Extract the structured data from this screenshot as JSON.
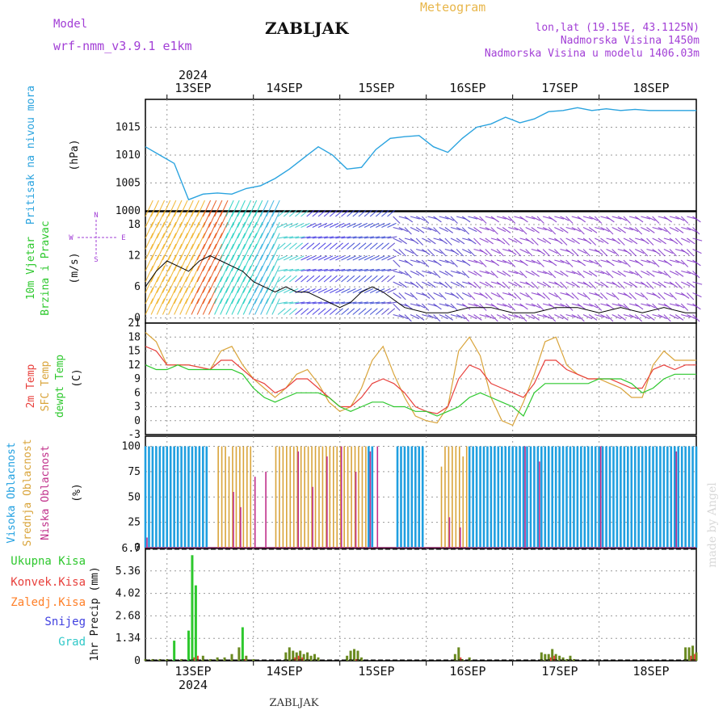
{
  "header": {
    "model_label": "Model",
    "model_name": "wrf-nmm_v3.9.1 e1km",
    "station": "ZABLJAK",
    "product": "Meteogram",
    "lonlat": "lon,lat (19.15E, 43.1125N)",
    "elevation": "Nadmorska Visina 1450m",
    "model_elevation": "Nadmorska Visina u modelu 1406.03m",
    "footer_station": "ZABLJAK",
    "watermark": "made by Angel"
  },
  "time_axis": {
    "year": "2024",
    "day_labels": [
      "13SEP",
      "14SEP",
      "15SEP",
      "16SEP",
      "17SEP",
      "18SEP"
    ],
    "start_hour_offset": -6,
    "end_hour": 147
  },
  "colors": {
    "pressure": "#2aa3df",
    "temp2m": "#e8403c",
    "sfc": "#d9a43a",
    "dewpt": "#2ec82e",
    "high_cloud": "#1f9fe0",
    "mid_cloud": "#d9a43a",
    "low_cloud": "#c0308a",
    "precip_total": "#2ec82e",
    "precip_conv": "#e8403c",
    "precip_frz": "#ff7f27",
    "snow": "#4040e0",
    "hail": "#30c8c8",
    "label_purple": "#a23fd6",
    "label_gold": "#e8b64a"
  },
  "panels": {
    "pressure": {
      "labels": [
        "Pritisak na nivou mora"
      ],
      "unit": "(hPa)",
      "ticks": [
        "1000",
        "1005",
        "1010",
        "1015"
      ]
    },
    "wind": {
      "labels": [
        "10m Vjetar",
        "Brzina i Pravac"
      ],
      "unit": "(m/s)",
      "ticks": [
        "0",
        "6",
        "12",
        "18"
      ],
      "compass": [
        "N",
        "W",
        "E",
        "S"
      ]
    },
    "temp": {
      "labels": [
        "2m Temp",
        "SFC Temp",
        "dewpt Temp"
      ],
      "unit": "(C)",
      "ticks": [
        "-3",
        "0",
        "3",
        "6",
        "9",
        "12",
        "15",
        "18",
        "21"
      ]
    },
    "cloud": {
      "labels": [
        "Visoka Oblacnost",
        "Srednja Oblacnost",
        "Niska Oblacnost"
      ],
      "unit": "(%)",
      "ticks": [
        "0",
        "25",
        "50",
        "75",
        "100"
      ]
    },
    "precip": {
      "labels": [
        "Ukupna Kisa",
        "Konvek.Kisa",
        "Zaledj.Kisa",
        "Snijeg",
        "Grad"
      ],
      "unit": "1hr Precip (mm)",
      "ticks": [
        "0",
        "1.34",
        "2.68",
        "4.02",
        "5.36",
        "6.7"
      ]
    }
  },
  "chart_data": [
    {
      "type": "line",
      "title": "",
      "ylabel": "Pritisak na nivou mora (hPa)",
      "ylim": [
        1000,
        1020
      ],
      "series": [
        {
          "name": "Pritisak na nivou mora",
          "x": [
            -6,
            -2,
            2,
            6,
            10,
            14,
            18,
            22,
            26,
            30,
            34,
            38,
            42,
            46,
            50,
            54,
            58,
            62,
            66,
            70,
            74,
            78,
            82,
            86,
            90,
            94,
            98,
            102,
            106,
            110,
            114,
            118,
            122,
            126,
            130,
            134,
            138,
            142,
            147
          ],
          "y": [
            1011.5,
            1010.0,
            1008.5,
            1002.0,
            1003.0,
            1003.2,
            1003.0,
            1004.0,
            1004.5,
            1005.8,
            1007.5,
            1009.5,
            1011.5,
            1010.0,
            1007.5,
            1007.8,
            1011.0,
            1013.0,
            1013.3,
            1013.5,
            1011.5,
            1010.5,
            1013.0,
            1015.0,
            1015.6,
            1016.8,
            1015.8,
            1016.5,
            1017.8,
            1018.0,
            1018.5,
            1018.0,
            1018.3,
            1018.0,
            1018.2,
            1018.0,
            1018.0,
            1018.0,
            1018.0
          ]
        }
      ]
    },
    {
      "type": "line",
      "title": "",
      "ylabel": "10m Vjetar Brzina i Pravac (m/s)",
      "ylim": [
        0,
        20
      ],
      "series": [
        {
          "name": "10m Vjetar",
          "x": [
            -6,
            -3,
            0,
            3,
            6,
            9,
            12,
            15,
            18,
            21,
            24,
            27,
            30,
            33,
            36,
            39,
            42,
            45,
            48,
            51,
            54,
            57,
            60,
            66,
            72,
            78,
            84,
            90,
            96,
            102,
            108,
            114,
            120,
            126,
            132,
            138,
            144,
            147
          ],
          "y": [
            6,
            9,
            11,
            10,
            9,
            11,
            12,
            11,
            10,
            9,
            7,
            6,
            5,
            6,
            5,
            5,
            4,
            3,
            2,
            3,
            5,
            6,
            5,
            2,
            1,
            1,
            2,
            2,
            1,
            1,
            2,
            2,
            1,
            2,
            1,
            2,
            1,
            1
          ]
        }
      ]
    },
    {
      "type": "line",
      "title": "",
      "ylabel": "(C)",
      "ylim": [
        -3,
        21
      ],
      "series": [
        {
          "name": "2m Temp",
          "x": [
            -6,
            -3,
            0,
            3,
            6,
            9,
            12,
            15,
            18,
            21,
            24,
            27,
            30,
            33,
            36,
            39,
            42,
            45,
            48,
            51,
            54,
            57,
            60,
            63,
            66,
            69,
            72,
            75,
            78,
            81,
            84,
            87,
            90,
            93,
            96,
            99,
            102,
            105,
            108,
            111,
            114,
            117,
            120,
            123,
            126,
            129,
            132,
            135,
            138,
            141,
            144,
            147
          ],
          "y": [
            16,
            15,
            12,
            12,
            12,
            11.5,
            11,
            13,
            13,
            11,
            9,
            8,
            6,
            7,
            9,
            9,
            7,
            5,
            3,
            3,
            5,
            8,
            9,
            8,
            6,
            3,
            2,
            1.5,
            3,
            9,
            12,
            11,
            8,
            7,
            6,
            5,
            8,
            13,
            13,
            11,
            10,
            9,
            9,
            9,
            8,
            7,
            7,
            11,
            12,
            11,
            12,
            12
          ]
        },
        {
          "name": "SFC Temp",
          "x": [
            -6,
            -3,
            0,
            3,
            6,
            9,
            12,
            15,
            18,
            21,
            24,
            27,
            30,
            33,
            36,
            39,
            42,
            45,
            48,
            51,
            54,
            57,
            60,
            63,
            66,
            69,
            72,
            75,
            78,
            81,
            84,
            87,
            90,
            93,
            96,
            99,
            102,
            105,
            108,
            111,
            114,
            117,
            120,
            123,
            126,
            129,
            132,
            135,
            138,
            141,
            144,
            147
          ],
          "y": [
            19,
            17,
            12,
            12,
            12,
            11.5,
            11,
            15,
            16,
            12,
            9,
            7,
            5,
            7,
            10,
            11,
            8,
            4,
            2,
            3,
            7,
            13,
            16,
            10,
            5,
            1,
            0,
            -0.5,
            3,
            15,
            18,
            14,
            5,
            0,
            -1,
            4,
            10,
            17,
            18,
            12,
            10,
            9,
            9,
            8,
            7,
            5,
            5,
            12,
            15,
            13,
            13,
            13
          ]
        },
        {
          "name": "dewpt Temp",
          "x": [
            -6,
            -3,
            0,
            3,
            6,
            9,
            12,
            15,
            18,
            21,
            24,
            27,
            30,
            33,
            36,
            39,
            42,
            45,
            48,
            51,
            54,
            57,
            60,
            63,
            66,
            69,
            72,
            75,
            78,
            81,
            84,
            87,
            90,
            93,
            96,
            99,
            102,
            105,
            108,
            111,
            114,
            117,
            120,
            123,
            126,
            129,
            132,
            135,
            138,
            141,
            144,
            147
          ],
          "y": [
            12,
            11,
            11,
            12,
            11,
            11,
            11,
            11,
            11,
            10,
            7,
            5,
            4,
            5,
            6,
            6,
            6,
            5,
            3,
            2,
            3,
            4,
            4,
            3,
            3,
            2,
            2,
            1,
            2,
            3,
            5,
            6,
            5,
            4,
            3,
            1,
            6,
            8,
            8,
            8,
            8,
            8,
            9,
            9,
            9,
            8,
            6,
            7,
            9,
            10,
            10,
            10
          ]
        }
      ]
    },
    {
      "type": "bar",
      "title": "",
      "ylabel": "(%)",
      "ylim": [
        0,
        100
      ],
      "series": [
        {
          "name": "Visoka Oblacnost",
          "x": [
            -6,
            -5,
            -4,
            -3,
            -2,
            -1,
            0,
            1,
            2,
            3,
            4,
            5,
            6,
            7,
            8,
            9,
            10,
            11,
            56,
            57,
            64,
            65,
            66,
            67,
            68,
            69,
            70,
            71,
            84,
            85,
            86,
            87,
            88,
            89,
            90,
            91,
            92,
            93,
            94,
            95,
            96,
            97,
            98,
            99,
            100,
            101,
            102,
            103,
            104,
            105,
            106,
            107,
            108,
            109,
            110,
            111,
            112,
            113,
            114,
            115,
            116,
            117,
            118,
            119,
            120,
            121,
            122,
            123,
            124,
            125,
            126,
            127,
            128,
            129,
            130,
            131,
            132,
            133,
            134,
            135,
            136,
            137,
            138,
            139,
            140,
            141,
            142,
            143,
            144,
            145,
            146,
            147
          ],
          "y": [
            100,
            100,
            100,
            100,
            100,
            100,
            100,
            100,
            100,
            100,
            100,
            100,
            100,
            100,
            100,
            100,
            100,
            100,
            100,
            100,
            100,
            100,
            100,
            100,
            100,
            100,
            100,
            100,
            100,
            100,
            100,
            100,
            100,
            100,
            100,
            100,
            100,
            100,
            100,
            100,
            100,
            100,
            100,
            100,
            100,
            100,
            100,
            100,
            100,
            100,
            100,
            100,
            100,
            100,
            100,
            100,
            100,
            100,
            100,
            100,
            100,
            100,
            100,
            100,
            100,
            100,
            100,
            100,
            100,
            100,
            100,
            100,
            100,
            100,
            100,
            100,
            100,
            100,
            100,
            100,
            100,
            100,
            100,
            100,
            100,
            100,
            100,
            100,
            100,
            100,
            100,
            100
          ]
        },
        {
          "name": "Srednja Oblacnost",
          "x": [
            14,
            15,
            16,
            17,
            18,
            19,
            20,
            21,
            22,
            23,
            30,
            31,
            32,
            33,
            34,
            35,
            36,
            37,
            38,
            39,
            40,
            41,
            42,
            43,
            44,
            45,
            46,
            47,
            48,
            49,
            50,
            51,
            52,
            53,
            54,
            55,
            76,
            77,
            78,
            79,
            80,
            81,
            82,
            83
          ],
          "y": [
            100,
            100,
            100,
            90,
            100,
            100,
            100,
            100,
            100,
            100,
            100,
            100,
            100,
            100,
            100,
            100,
            100,
            100,
            100,
            100,
            100,
            100,
            100,
            100,
            100,
            100,
            100,
            100,
            100,
            100,
            100,
            100,
            100,
            100,
            100,
            100,
            80,
            100,
            100,
            100,
            100,
            100,
            90,
            100
          ]
        },
        {
          "name": "Niska Oblacnost",
          "x": [
            -6,
            18,
            20,
            24,
            27,
            36,
            40,
            44,
            48,
            52,
            56,
            58,
            78,
            81,
            99,
            103,
            120,
            141
          ],
          "y": [
            10,
            55,
            40,
            70,
            75,
            95,
            60,
            90,
            100,
            75,
            95,
            100,
            30,
            20,
            100,
            85,
            100,
            95
          ]
        }
      ]
    },
    {
      "type": "bar",
      "title": "",
      "ylabel": "1hr Precip (mm)",
      "ylim": [
        0,
        6.7
      ],
      "series": [
        {
          "name": "Ukupna Kisa",
          "x": [
            -6,
            -4,
            -2,
            0,
            2,
            4,
            6,
            7,
            8,
            10,
            12,
            14,
            16,
            18,
            20,
            21,
            22,
            24,
            33,
            34,
            35,
            36,
            37,
            38,
            39,
            40,
            41,
            42,
            50,
            51,
            52,
            53,
            54,
            80,
            81,
            82,
            84,
            104,
            105,
            106,
            107,
            108,
            109,
            110,
            111,
            112,
            113,
            144,
            145,
            146,
            147
          ],
          "y": [
            0.1,
            0.1,
            0.1,
            0.1,
            1.2,
            0.1,
            1.8,
            6.3,
            4.5,
            0.3,
            0.1,
            0.2,
            0.2,
            0.4,
            0.8,
            2.0,
            0.3,
            0.1,
            0.5,
            0.8,
            0.6,
            0.5,
            0.6,
            0.4,
            0.5,
            0.3,
            0.4,
            0.2,
            0.3,
            0.6,
            0.7,
            0.6,
            0.2,
            0.4,
            0.8,
            0.1,
            0.2,
            0.5,
            0.4,
            0.4,
            0.7,
            0.4,
            0.3,
            0.2,
            0.1,
            0.3,
            0.1,
            0.8,
            0.8,
            0.9,
            0.5
          ]
        },
        {
          "name": "Konvek.Kisa",
          "x": [
            7,
            8,
            21,
            35,
            36,
            37,
            52,
            81,
            106,
            107,
            145,
            146
          ],
          "y": [
            0.2,
            0.3,
            0.1,
            0.2,
            0.3,
            0.2,
            0.1,
            0.2,
            0.2,
            0.3,
            0.3,
            0.4
          ]
        }
      ]
    }
  ]
}
